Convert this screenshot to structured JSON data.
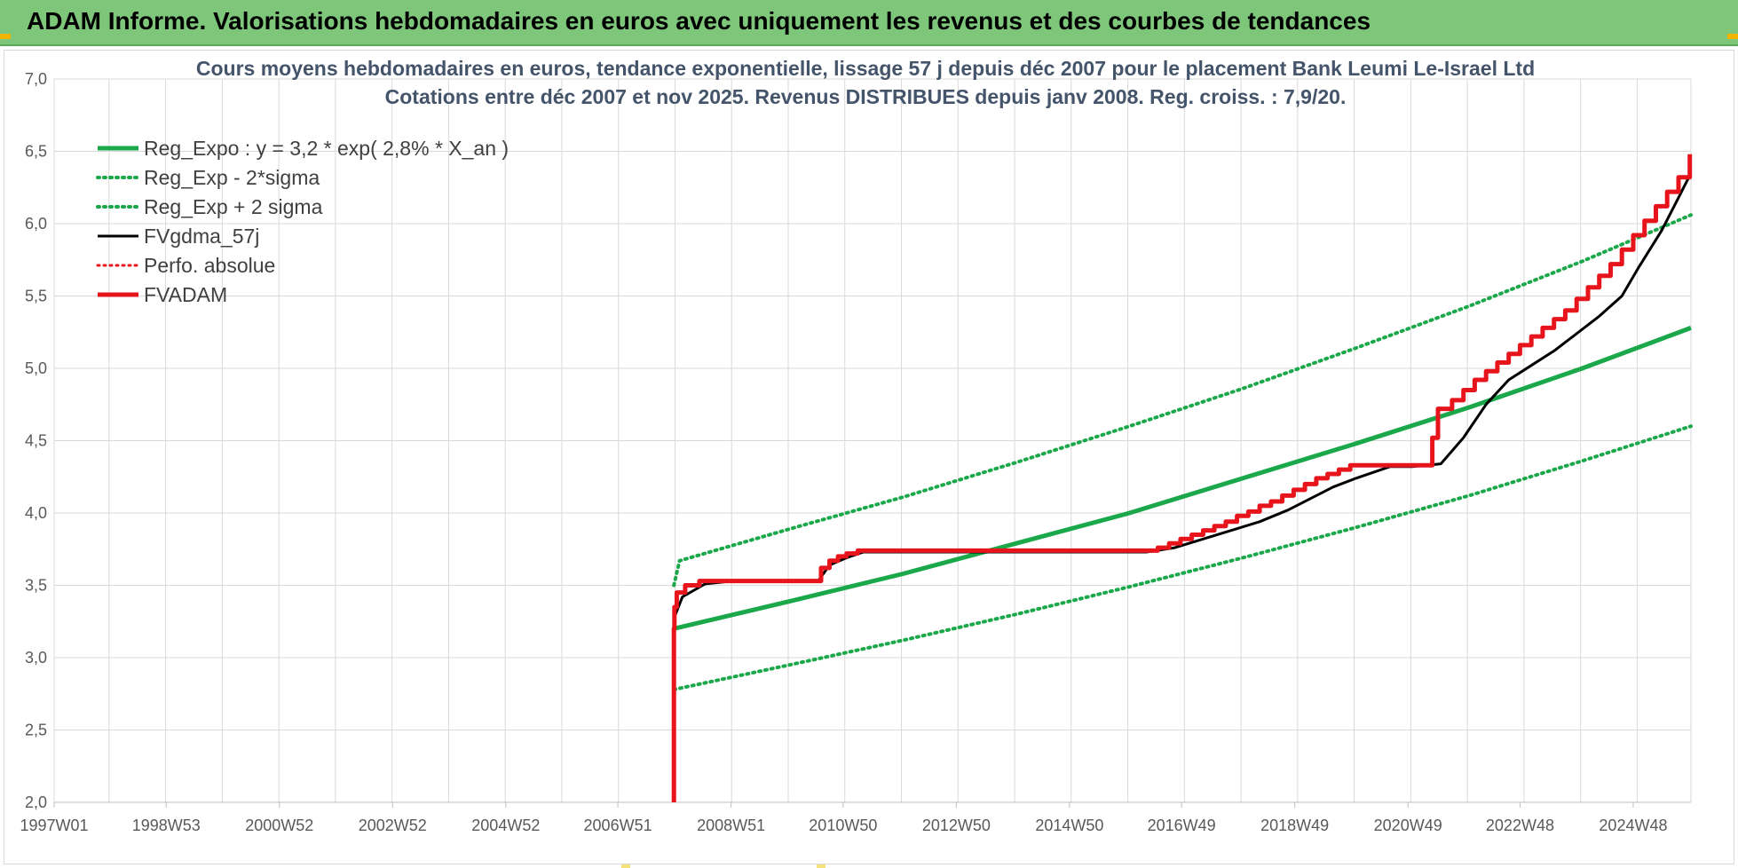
{
  "header": {
    "title": "ADAM Informe. Valorisations hebdomadaires en euros avec uniquement les revenus et des courbes de tendances"
  },
  "colors": {
    "header_bg": "#7dc67a",
    "reg_green": "#1aa84a",
    "fv_black": "#000000",
    "adam_red": "#e8141c",
    "grid": "#d9d9d9"
  },
  "chart_data": {
    "type": "line",
    "title_lines": [
      "Cours moyens hebdomadaires en euros, tendance exponentielle, lissage 57 j depuis déc 2007 pour le placement Bank Leumi Le-Israel Ltd",
      "Cotations entre déc 2007 et nov 2025. Revenus DISTRIBUES depuis janv 2008. Reg. croiss. : 7,9/20."
    ],
    "x_domain": [
      1997.0,
      2025.92
    ],
    "ylim": [
      2.0,
      7.0
    ],
    "y_ticks": [
      "2,0",
      "2,5",
      "3,0",
      "3,5",
      "4,0",
      "4,5",
      "5,0",
      "5,5",
      "6,0",
      "6,5",
      "7,0"
    ],
    "x_ticks": [
      {
        "label": "1997W01",
        "x": 1997.0
      },
      {
        "label": "1998W53",
        "x": 1998.98
      },
      {
        "label": "2000W52",
        "x": 2000.98
      },
      {
        "label": "2002W52",
        "x": 2002.98
      },
      {
        "label": "2004W52",
        "x": 2004.98
      },
      {
        "label": "2006W51",
        "x": 2006.96
      },
      {
        "label": "2008W51",
        "x": 2008.96
      },
      {
        "label": "2010W50",
        "x": 2010.94
      },
      {
        "label": "2012W50",
        "x": 2012.94
      },
      {
        "label": "2014W50",
        "x": 2014.94
      },
      {
        "label": "2016W49",
        "x": 2016.92
      },
      {
        "label": "2018W49",
        "x": 2018.92
      },
      {
        "label": "2020W49",
        "x": 2020.92
      },
      {
        "label": "2022W48",
        "x": 2022.9
      },
      {
        "label": "2024W48",
        "x": 2024.9
      }
    ],
    "grid": true,
    "legend_position": "top-left",
    "series": [
      {
        "name": "Reg_Expo : y = 3,2 * exp( 2,8% *  X_an )",
        "style": "solid",
        "color": "#1aa84a",
        "width": 5,
        "x": [
          2007.95,
          2010.0,
          2012.0,
          2014.0,
          2016.0,
          2018.0,
          2020.0,
          2022.0,
          2024.0,
          2025.92
        ],
        "y": [
          3.2,
          3.39,
          3.58,
          3.79,
          4.0,
          4.24,
          4.48,
          4.73,
          5.0,
          5.28
        ]
      },
      {
        "name": "Reg_Exp - 2*sigma",
        "style": "dotted",
        "color": "#1aa84a",
        "width": 4,
        "x": [
          2007.95,
          2010.0,
          2012.0,
          2014.0,
          2016.0,
          2018.0,
          2020.0,
          2022.0,
          2024.0,
          2025.92
        ],
        "y": [
          2.78,
          2.95,
          3.12,
          3.3,
          3.49,
          3.69,
          3.9,
          4.12,
          4.36,
          4.6
        ]
      },
      {
        "name": "Reg_Exp + 2 sigma",
        "style": "dotted",
        "color": "#1aa84a",
        "width": 4,
        "x": [
          2007.95,
          2008.05,
          2010.0,
          2012.0,
          2014.0,
          2016.0,
          2018.0,
          2020.0,
          2022.0,
          2024.0,
          2025.92
        ],
        "y": [
          3.5,
          3.67,
          3.89,
          4.11,
          4.35,
          4.6,
          4.86,
          5.14,
          5.43,
          5.74,
          6.06
        ]
      },
      {
        "name": "FVgdma_57j",
        "style": "solid",
        "color": "#000000",
        "width": 3,
        "x": [
          2007.96,
          2008.1,
          2008.5,
          2009.0,
          2010.5,
          2010.7,
          2011.0,
          2011.3,
          2016.3,
          2016.8,
          2017.3,
          2017.8,
          2018.3,
          2018.8,
          2019.2,
          2019.6,
          2020.0,
          2020.6,
          2021.0,
          2021.5,
          2021.9,
          2022.3,
          2022.7,
          2023.1,
          2023.5,
          2023.9,
          2024.3,
          2024.7,
          2025.0,
          2025.4,
          2025.7,
          2025.92
        ],
        "y": [
          3.28,
          3.42,
          3.51,
          3.53,
          3.53,
          3.64,
          3.69,
          3.73,
          3.73,
          3.76,
          3.82,
          3.88,
          3.94,
          4.02,
          4.1,
          4.18,
          4.24,
          4.32,
          4.32,
          4.34,
          4.52,
          4.75,
          4.92,
          5.02,
          5.12,
          5.24,
          5.36,
          5.5,
          5.7,
          5.95,
          6.18,
          6.35
        ]
      },
      {
        "name": "Perfo. absolue",
        "style": "dotted",
        "color": "#e8141c",
        "width": 3,
        "x": [],
        "y": []
      },
      {
        "name": "FVADAM",
        "style": "solid",
        "color": "#e8141c",
        "width": 5,
        "steps": true,
        "x": [
          2007.95,
          2007.95,
          2007.96,
          2008.0,
          2008.15,
          2008.4,
          2010.45,
          2010.55,
          2010.7,
          2010.85,
          2011.0,
          2011.2,
          2016.3,
          2016.5,
          2016.7,
          2016.9,
          2017.1,
          2017.3,
          2017.5,
          2017.7,
          2017.9,
          2018.1,
          2018.3,
          2018.5,
          2018.7,
          2018.9,
          2019.1,
          2019.3,
          2019.5,
          2019.7,
          2019.9,
          2020.1,
          2020.3,
          2021.0,
          2021.05,
          2021.35,
          2021.45,
          2021.7,
          2021.9,
          2022.1,
          2022.3,
          2022.5,
          2022.7,
          2022.9,
          2023.1,
          2023.3,
          2023.5,
          2023.7,
          2023.9,
          2024.1,
          2024.3,
          2024.5,
          2024.7,
          2024.9,
          2025.1,
          2025.3,
          2025.5,
          2025.7,
          2025.9
        ],
        "y": [
          2.0,
          3.2,
          3.35,
          3.45,
          3.5,
          3.53,
          3.53,
          3.62,
          3.67,
          3.7,
          3.72,
          3.74,
          3.74,
          3.76,
          3.79,
          3.82,
          3.85,
          3.88,
          3.91,
          3.94,
          3.98,
          4.01,
          4.05,
          4.08,
          4.12,
          4.16,
          4.2,
          4.24,
          4.27,
          4.3,
          4.33,
          4.33,
          4.33,
          4.33,
          4.33,
          4.52,
          4.72,
          4.78,
          4.85,
          4.92,
          4.98,
          5.04,
          5.1,
          5.16,
          5.22,
          5.28,
          5.34,
          5.4,
          5.48,
          5.56,
          5.64,
          5.72,
          5.82,
          5.92,
          6.02,
          6.12,
          6.22,
          6.32,
          6.48
        ]
      }
    ]
  }
}
